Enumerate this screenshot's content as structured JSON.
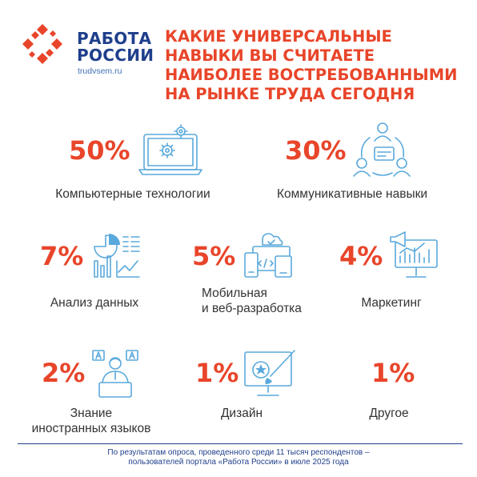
{
  "brand": {
    "name_line1": "РАБОТА",
    "name_line2": "РОССИИ",
    "url": "trudvsem.ru",
    "colors": {
      "brand_blue": "#1f3f8c",
      "accent_red": "#e8452a",
      "icon_blue": "#5aa9dc"
    }
  },
  "headline": {
    "lines": [
      "КАКИЕ УНИВЕРСАЛЬНЫЕ",
      "НАВЫКИ ВЫ СЧИТАЕТЕ",
      "НАИБОЛЕЕ ВОСТРЕБОВАННЫМИ",
      "НА РЫНКЕ ТРУДА СЕГОДНЯ"
    ]
  },
  "skills": [
    {
      "percent": "50%",
      "label_lines": [
        "Компьютерные технологии"
      ],
      "icon": "laptop-gear-icon"
    },
    {
      "percent": "30%",
      "label_lines": [
        "Коммуникативные навыки"
      ],
      "icon": "people-chat-icon"
    },
    {
      "percent": "7%",
      "label_lines": [
        "Анализ данных"
      ],
      "icon": "data-analytics-icon"
    },
    {
      "percent": "5%",
      "label_lines": [
        "Мобильная",
        "и веб-разработка"
      ],
      "icon": "devices-icon"
    },
    {
      "percent": "4%",
      "label_lines": [
        "Маркетинг"
      ],
      "icon": "megaphone-chart-icon"
    },
    {
      "percent": "2%",
      "label_lines": [
        "Знание",
        "иностранных языков"
      ],
      "icon": "translator-icon"
    },
    {
      "percent": "1%",
      "label_lines": [
        "Дизайн"
      ],
      "icon": "monitor-brush-icon"
    },
    {
      "percent": "1%",
      "label_lines": [
        "Другое"
      ],
      "icon": ""
    }
  ],
  "footer": {
    "lines": [
      "По результатам опроса, проведенного среди 11 тысяч респондентов –",
      "пользователей портала «Работа России» в июле 2025 года"
    ]
  }
}
